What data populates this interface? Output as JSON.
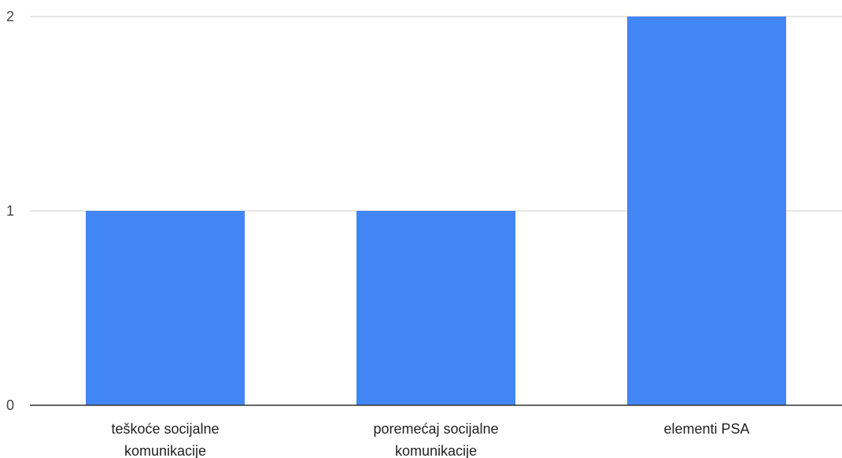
{
  "chart_data": {
    "type": "bar",
    "title": "",
    "xlabel": "",
    "ylabel": "",
    "categories": [
      [
        "teškoće socijalne",
        "komunikacije"
      ],
      [
        "poremećaj socijalne",
        "komunikacije"
      ],
      [
        "elementi PSA"
      ]
    ],
    "values": [
      1,
      1,
      2
    ],
    "ylim": [
      0,
      2
    ],
    "yticks": [
      "0",
      "1",
      "2"
    ],
    "grid": true,
    "legend": "none",
    "colors": {
      "bar": "#4285f4",
      "grid": "#cccccc",
      "axis": "#333333"
    }
  }
}
